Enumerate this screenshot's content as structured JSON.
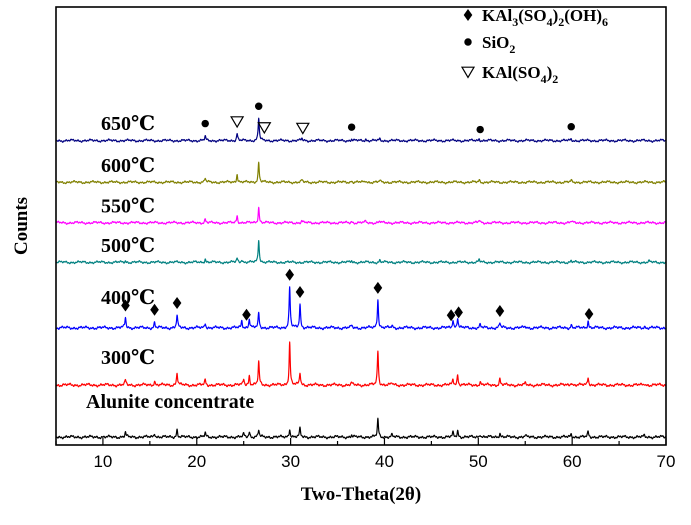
{
  "chart_data": {
    "type": "line",
    "title": "",
    "xlabel": "Two-Theta(2θ)",
    "ylabel": "Counts",
    "xlim": [
      5,
      70
    ],
    "xticks": [
      10,
      20,
      30,
      40,
      50,
      60,
      70
    ],
    "xtick_labels": [
      "10",
      "20",
      "30",
      "40",
      "50",
      "60",
      "70"
    ],
    "y_ticks_shown": false,
    "grid": false,
    "legend": {
      "position": "top-right",
      "items": [
        {
          "marker": "diamond",
          "label": "KAl3(SO4)2(OH)6",
          "display": [
            "KAl",
            "3",
            "(SO",
            "4",
            ")",
            "2",
            "(OH)",
            "6"
          ]
        },
        {
          "marker": "circle",
          "label": "SiO2",
          "display": [
            "SiO",
            "2"
          ]
        },
        {
          "marker": "triangle-down",
          "label": "KAl(SO4)2",
          "display": [
            "KAl(SO",
            "4",
            ")",
            "2"
          ]
        }
      ]
    },
    "series": [
      {
        "name": "Alunite concentrate",
        "label_text": "Alunite concentrate",
        "color": "#000000",
        "baseline": 0.0,
        "noise": 0.012,
        "ripple": 0.006,
        "peaks": [
          [
            12.4,
            0.045
          ],
          [
            15.5,
            0.04
          ],
          [
            17.9,
            0.07
          ],
          [
            20.9,
            0.04
          ],
          [
            25.0,
            0.03
          ],
          [
            25.6,
            0.05
          ],
          [
            26.6,
            0.07
          ],
          [
            29.9,
            0.08
          ],
          [
            31.0,
            0.08
          ],
          [
            36.5,
            0.02
          ],
          [
            39.3,
            0.17
          ],
          [
            40.8,
            0.02
          ],
          [
            47.3,
            0.04
          ],
          [
            47.8,
            0.06
          ],
          [
            50.2,
            0.03
          ],
          [
            52.3,
            0.04
          ],
          [
            55.0,
            0.015
          ],
          [
            59.9,
            0.03
          ],
          [
            61.7,
            0.05
          ],
          [
            67.7,
            0.015
          ]
        ],
        "label_x": 8.2,
        "label_dy": 0.28,
        "markers": []
      },
      {
        "name": "300℃",
        "label_text": "300℃",
        "color": "#ff0000",
        "baseline": 0.5,
        "noise": 0.012,
        "ripple": 0.007,
        "peaks": [
          [
            12.4,
            0.045
          ],
          [
            15.5,
            0.04
          ],
          [
            17.9,
            0.12
          ],
          [
            20.9,
            0.05
          ],
          [
            25.0,
            0.06
          ],
          [
            25.6,
            0.09
          ],
          [
            26.6,
            0.22
          ],
          [
            29.9,
            0.41
          ],
          [
            31.0,
            0.12
          ],
          [
            36.5,
            0.02
          ],
          [
            39.3,
            0.33
          ],
          [
            40.8,
            0.02
          ],
          [
            47.3,
            0.06
          ],
          [
            47.8,
            0.1
          ],
          [
            50.2,
            0.03
          ],
          [
            52.3,
            0.06
          ],
          [
            55.0,
            0.015
          ],
          [
            59.9,
            0.03
          ],
          [
            61.7,
            0.08
          ],
          [
            67.7,
            0.015
          ]
        ],
        "label_x": 9.8,
        "label_dy": 0.2,
        "markers": []
      },
      {
        "name": "400℃",
        "label_text": "400℃",
        "color": "#0000ff",
        "baseline": 1.05,
        "noise": 0.012,
        "ripple": 0.007,
        "peaks": [
          [
            12.4,
            0.1
          ],
          [
            15.5,
            0.05
          ],
          [
            17.9,
            0.12
          ],
          [
            20.9,
            0.05
          ],
          [
            24.8,
            0.07
          ],
          [
            25.6,
            0.09
          ],
          [
            26.6,
            0.14
          ],
          [
            29.9,
            0.39
          ],
          [
            31.0,
            0.23
          ],
          [
            36.5,
            0.02
          ],
          [
            39.3,
            0.28
          ],
          [
            40.8,
            0.02
          ],
          [
            47.3,
            0.08
          ],
          [
            47.8,
            0.1
          ],
          [
            50.2,
            0.03
          ],
          [
            52.3,
            0.05
          ],
          [
            55.0,
            0.015
          ],
          [
            59.9,
            0.03
          ],
          [
            61.7,
            0.07
          ],
          [
            67.7,
            0.015
          ]
        ],
        "label_x": 9.8,
        "label_dy": 0.23,
        "markers": [
          {
            "symbol": "diamond",
            "x": 12.4
          },
          {
            "symbol": "diamond",
            "x": 15.5
          },
          {
            "symbol": "diamond",
            "x": 17.9
          },
          {
            "symbol": "diamond",
            "x": 25.3
          },
          {
            "symbol": "diamond",
            "x": 29.9
          },
          {
            "symbol": "diamond",
            "x": 31.0
          },
          {
            "symbol": "diamond",
            "x": 39.3
          },
          {
            "symbol": "diamond",
            "x": 47.1
          },
          {
            "symbol": "diamond",
            "x": 47.9
          },
          {
            "symbol": "diamond",
            "x": 52.3
          },
          {
            "symbol": "diamond",
            "x": 61.8
          }
        ]
      },
      {
        "name": "500℃",
        "label_text": "500℃",
        "color": "#008080",
        "baseline": 1.68,
        "noise": 0.01,
        "ripple": 0.006,
        "peaks": [
          [
            12.4,
            0.015
          ],
          [
            20.9,
            0.035
          ],
          [
            24.3,
            0.04
          ],
          [
            24.8,
            0.03
          ],
          [
            26.6,
            0.22
          ],
          [
            36.5,
            0.015
          ],
          [
            39.5,
            0.02
          ],
          [
            50.1,
            0.025
          ],
          [
            59.9,
            0.015
          ],
          [
            68.2,
            0.01
          ]
        ],
        "label_x": 9.8,
        "label_dy": 0.1,
        "markers": []
      },
      {
        "name": "550℃",
        "label_text": "550℃",
        "color": "#ff00ff",
        "baseline": 2.06,
        "noise": 0.01,
        "ripple": 0.006,
        "peaks": [
          [
            20.9,
            0.035
          ],
          [
            24.3,
            0.07
          ],
          [
            26.6,
            0.15
          ],
          [
            31.2,
            0.02
          ],
          [
            36.5,
            0.015
          ],
          [
            38.0,
            0.015
          ],
          [
            39.5,
            0.015
          ],
          [
            50.1,
            0.025
          ],
          [
            59.9,
            0.015
          ]
        ],
        "label_x": 9.8,
        "label_dy": 0.1,
        "markers": []
      },
      {
        "name": "600℃",
        "label_text": "600℃",
        "color": "#808000",
        "baseline": 2.45,
        "noise": 0.01,
        "ripple": 0.006,
        "peaks": [
          [
            20.9,
            0.04
          ],
          [
            24.3,
            0.08
          ],
          [
            26.6,
            0.19
          ],
          [
            31.2,
            0.02
          ],
          [
            36.5,
            0.015
          ],
          [
            38.0,
            0.015
          ],
          [
            39.5,
            0.015
          ],
          [
            50.1,
            0.02
          ],
          [
            59.9,
            0.015
          ]
        ],
        "label_x": 9.8,
        "label_dy": 0.1,
        "markers": []
      },
      {
        "name": "650℃",
        "label_text": "650℃",
        "color": "#000080",
        "baseline": 2.85,
        "noise": 0.01,
        "ripple": 0.006,
        "peaks": [
          [
            20.9,
            0.04
          ],
          [
            24.3,
            0.07
          ],
          [
            26.6,
            0.22
          ],
          [
            31.2,
            0.02
          ],
          [
            36.5,
            0.015
          ],
          [
            38.0,
            0.015
          ],
          [
            39.5,
            0.015
          ],
          [
            50.1,
            0.02
          ],
          [
            59.9,
            0.015
          ]
        ],
        "label_x": 9.8,
        "label_dy": 0.1,
        "markers": [
          {
            "symbol": "circle",
            "x": 20.9
          },
          {
            "symbol": "triangle-down",
            "x": 24.3
          },
          {
            "symbol": "circle",
            "x": 26.6
          },
          {
            "symbol": "triangle-down",
            "x": 27.2
          },
          {
            "symbol": "triangle-down",
            "x": 31.3
          },
          {
            "symbol": "circle",
            "x": 36.5
          },
          {
            "symbol": "circle",
            "x": 50.2
          },
          {
            "symbol": "circle",
            "x": 59.9
          }
        ]
      }
    ]
  }
}
